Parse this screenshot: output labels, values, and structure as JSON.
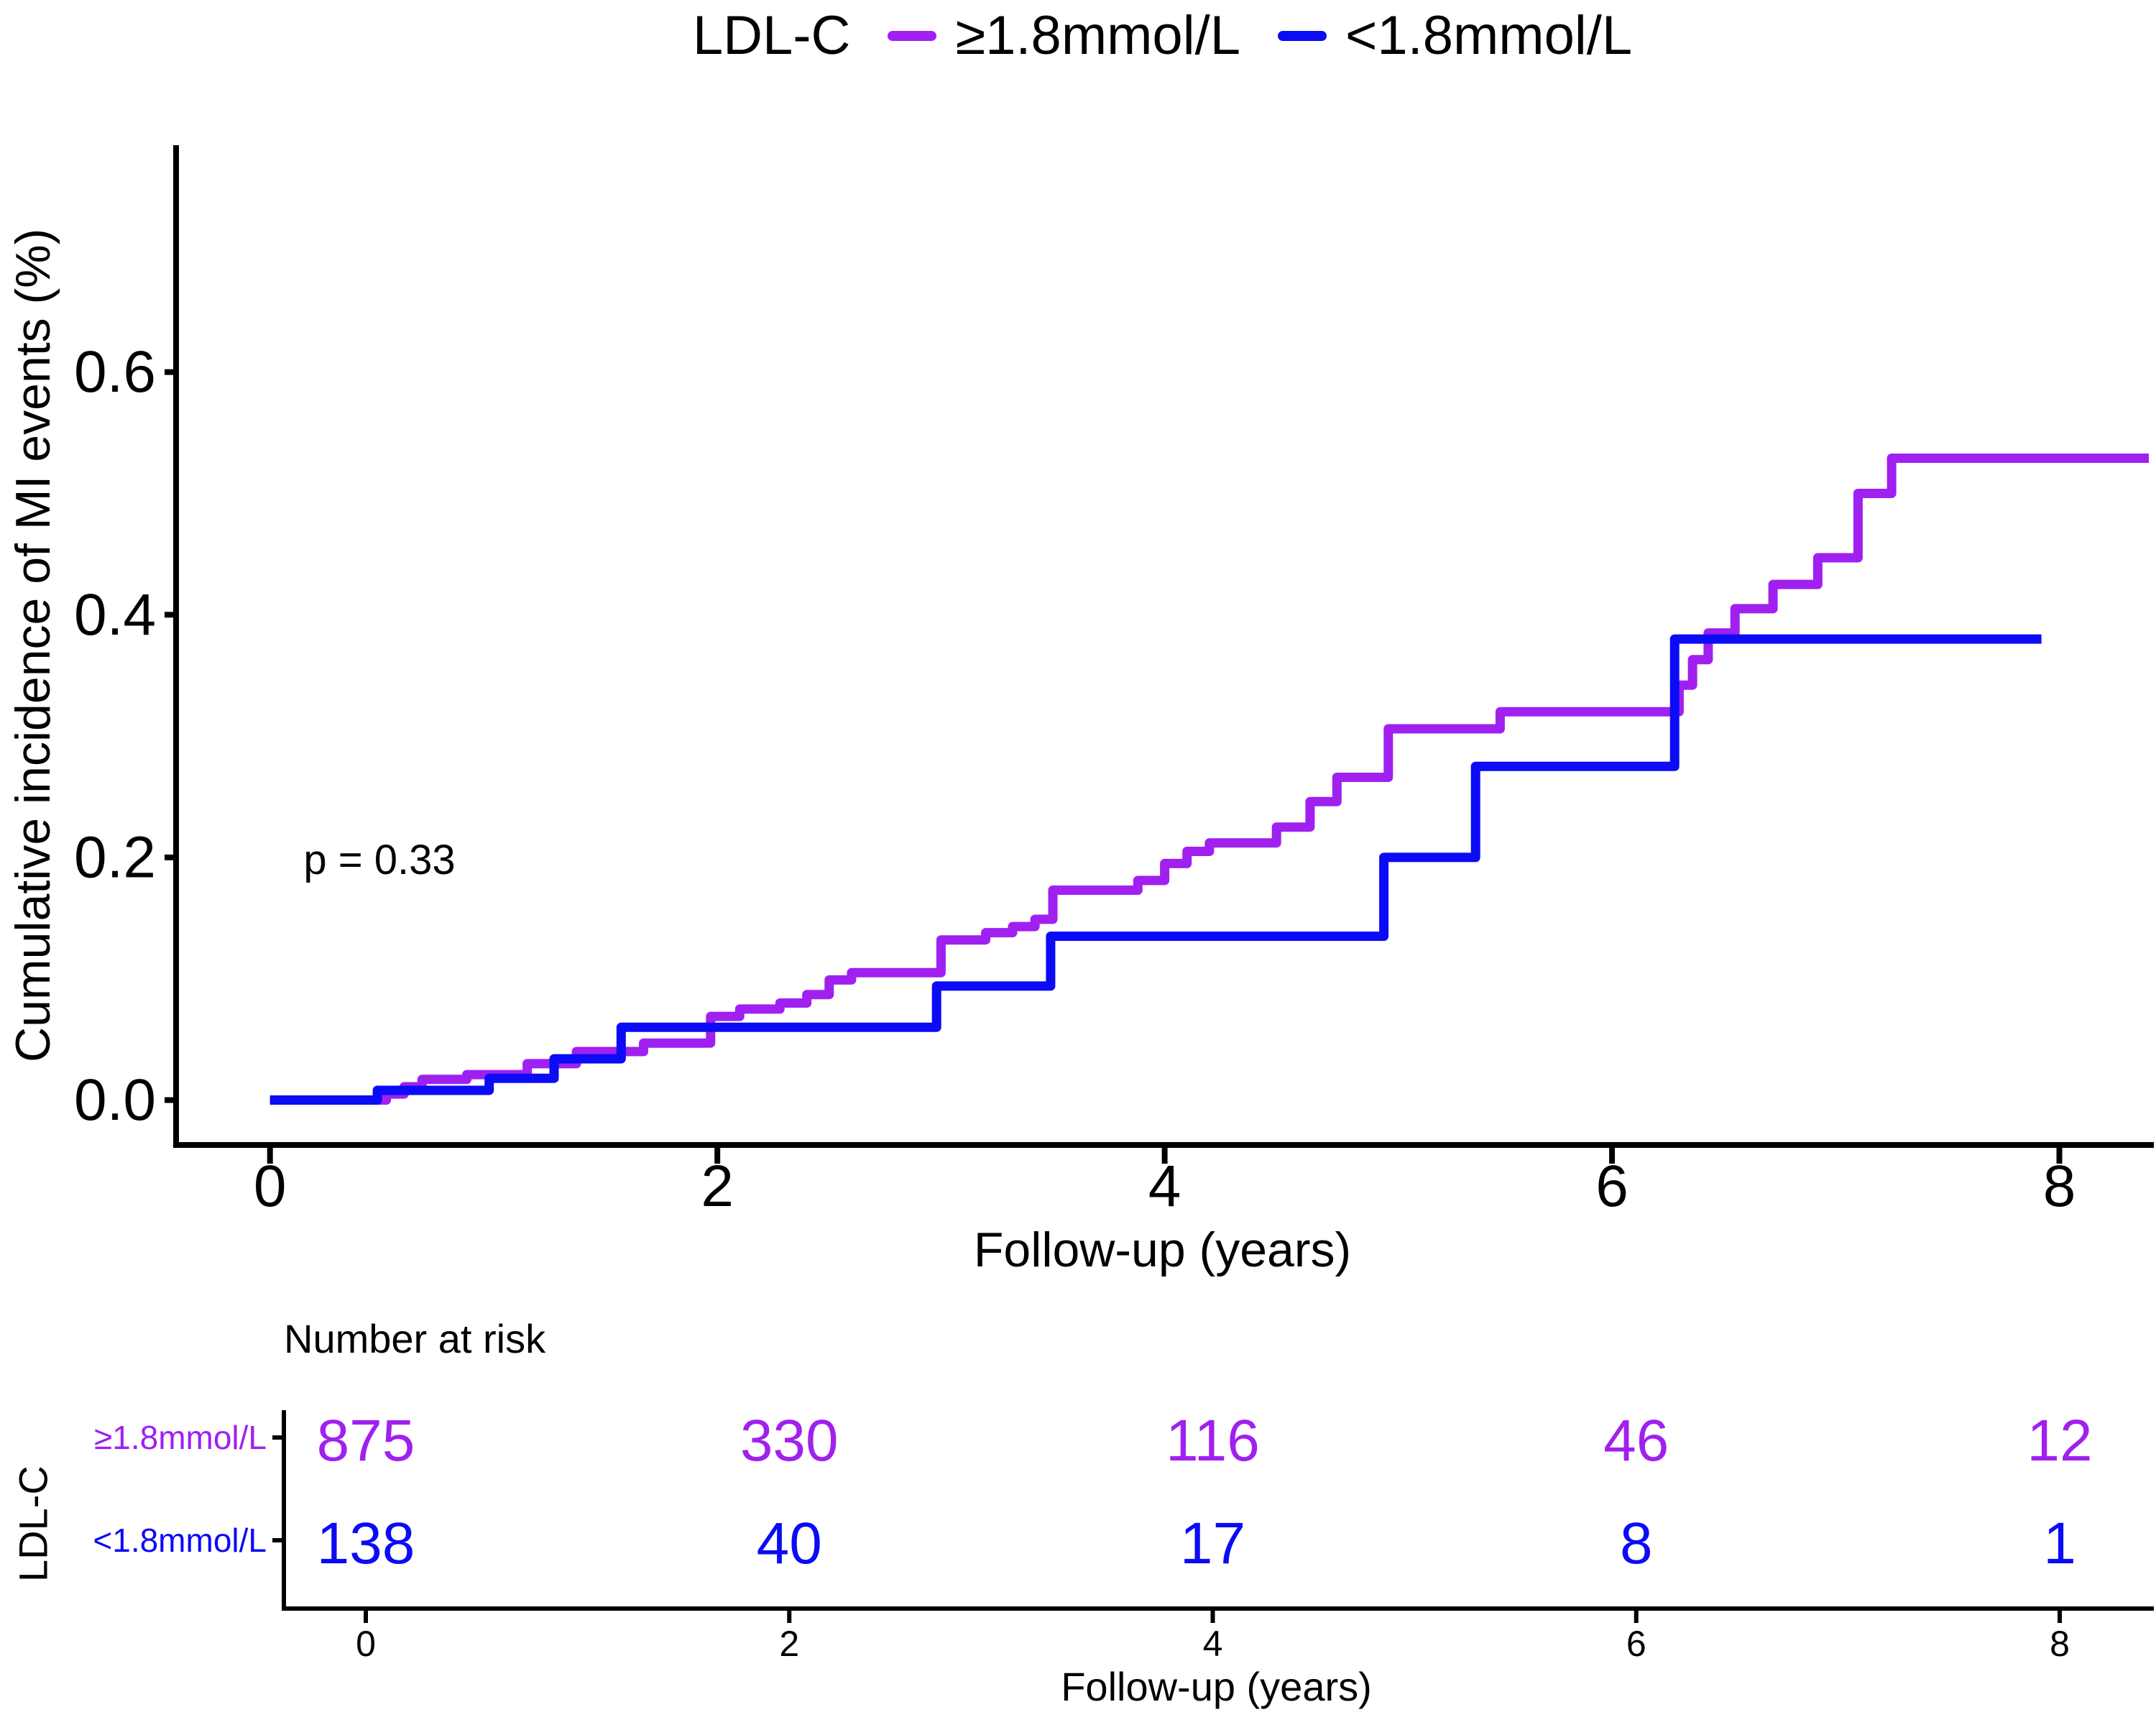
{
  "legend": {
    "title": "LDL-C",
    "series": [
      {
        "label": "≥1.8mmol/L",
        "color": "#A020F0"
      },
      {
        "label": "<1.8mmol/L",
        "color": "#0B0BF5"
      }
    ]
  },
  "chart_data": {
    "type": "line",
    "subtype": "kaplan-meier-cumulative-incidence-step",
    "title": "",
    "xlabel": "Follow-up (years)",
    "ylabel": "Cumulative incidence of MI events (%)",
    "xlim": [
      -0.42,
      8.4
    ],
    "ylim": [
      -0.037,
      0.787
    ],
    "grid": false,
    "legend_position": "top",
    "xticks": [
      0,
      2,
      4,
      6,
      8
    ],
    "yticks": [
      {
        "label": "0.0",
        "value": 0.0
      },
      {
        "label": "0.2",
        "value": 0.2
      },
      {
        "label": "0.4",
        "value": 0.4
      },
      {
        "label": "0.6",
        "value": 0.6
      }
    ],
    "annotation": {
      "text": "p = 0.33",
      "x": 0.15,
      "y": 0.198
    },
    "series": [
      {
        "name": "≥1.8mmol/L",
        "color": "#A020F0",
        "start": [
          0,
          0
        ],
        "end_x": 8.4,
        "steps": [
          [
            0.52,
            0.005
          ],
          [
            0.6,
            0.011
          ],
          [
            0.68,
            0.017
          ],
          [
            0.88,
            0.021
          ],
          [
            1.15,
            0.03
          ],
          [
            1.37,
            0.04
          ],
          [
            1.67,
            0.047
          ],
          [
            1.97,
            0.069
          ],
          [
            2.1,
            0.075
          ],
          [
            2.28,
            0.08
          ],
          [
            2.4,
            0.087
          ],
          [
            2.5,
            0.099
          ],
          [
            2.6,
            0.105
          ],
          [
            3.0,
            0.132
          ],
          [
            3.2,
            0.138
          ],
          [
            3.32,
            0.143
          ],
          [
            3.42,
            0.149
          ],
          [
            3.5,
            0.173
          ],
          [
            3.88,
            0.181
          ],
          [
            4.0,
            0.195
          ],
          [
            4.1,
            0.205
          ],
          [
            4.2,
            0.212
          ],
          [
            4.5,
            0.225
          ],
          [
            4.65,
            0.246
          ],
          [
            4.77,
            0.266
          ],
          [
            5.0,
            0.306
          ],
          [
            5.5,
            0.32
          ],
          [
            6.3,
            0.342
          ],
          [
            6.36,
            0.363
          ],
          [
            6.43,
            0.385
          ],
          [
            6.55,
            0.405
          ],
          [
            6.72,
            0.425
          ],
          [
            6.92,
            0.447
          ],
          [
            7.1,
            0.5
          ],
          [
            7.25,
            0.529
          ]
        ]
      },
      {
        "name": "<1.8mmol/L",
        "color": "#0B0BF5",
        "start": [
          0,
          0
        ],
        "end_x": 7.92,
        "steps": [
          [
            0.48,
            0.008
          ],
          [
            0.98,
            0.018
          ],
          [
            1.27,
            0.034
          ],
          [
            1.57,
            0.06
          ],
          [
            2.98,
            0.094
          ],
          [
            3.49,
            0.135
          ],
          [
            4.98,
            0.2
          ],
          [
            5.39,
            0.275
          ],
          [
            6.28,
            0.38
          ]
        ]
      }
    ]
  },
  "risk_table": {
    "heading": "Number at risk",
    "axis_label": "LDL-C",
    "xlabel": "Follow-up (years)",
    "xticks": [
      0,
      2,
      4,
      6,
      8
    ],
    "rows": [
      {
        "label": "≥1.8mmol/L",
        "color": "#A020F0",
        "counts": [
          "875",
          "330",
          "116",
          "46",
          "12"
        ]
      },
      {
        "label": "<1.8mmol/L",
        "color": "#0B0BF5",
        "counts": [
          "138",
          "40",
          "17",
          "8",
          "1"
        ]
      }
    ]
  }
}
